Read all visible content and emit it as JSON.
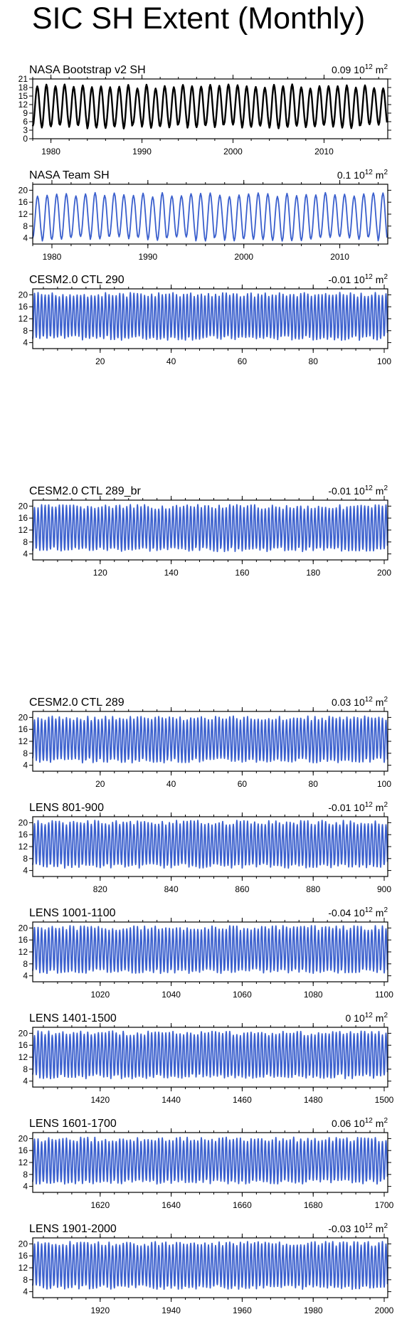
{
  "title": "SIC SH Extent (Monthly)",
  "chart_data": [
    {
      "type": "line",
      "panel_title": "NASA Bootstrap v2 SH",
      "trend": "0.09",
      "trend_unit_base": "10",
      "trend_unit_exp": "12",
      "trend_unit_tail": " m",
      "trend_unit_exp2": "2",
      "x_range": [
        1978,
        2017
      ],
      "x_ticks": [
        1980,
        1990,
        2000,
        2010
      ],
      "ylim": [
        0,
        21
      ],
      "y_ticks": [
        0,
        3,
        6,
        9,
        12,
        15,
        18,
        21
      ],
      "series": [
        {
          "color": "#000000",
          "period_years": 1,
          "min": 3.5,
          "max": 19.2
        }
      ]
    },
    {
      "type": "line",
      "panel_title": "NASA Team SH",
      "trend": "0.1",
      "trend_unit_base": "10",
      "trend_unit_exp": "12",
      "trend_unit_tail": " m",
      "trend_unit_exp2": "2",
      "x_range": [
        1978,
        2015
      ],
      "x_ticks": [
        1980,
        1990,
        2000,
        2010
      ],
      "ylim": [
        2,
        22
      ],
      "y_ticks": [
        4,
        8,
        12,
        16,
        20
      ],
      "series": [
        {
          "color": "#3a5fcd",
          "period_years": 1,
          "min": 3.0,
          "max": 19.2
        }
      ]
    },
    {
      "type": "line",
      "panel_title": "CESM2.0 CTL 290",
      "trend": "-0.01",
      "trend_unit_base": "10",
      "trend_unit_exp": "12",
      "trend_unit_tail": " m",
      "trend_unit_exp2": "2",
      "x_range": [
        1,
        101
      ],
      "x_ticks": [
        20,
        40,
        60,
        80,
        100
      ],
      "ylim": [
        2,
        22
      ],
      "y_ticks": [
        4,
        8,
        12,
        16,
        20
      ],
      "series": [
        {
          "color": "#3a5fcd",
          "period_years": 1,
          "min": 4.8,
          "max": 20.8
        }
      ]
    },
    {
      "type": "line",
      "panel_title": "CESM2.0 CTL 289_br",
      "trend": "-0.01",
      "trend_unit_base": "10",
      "trend_unit_exp": "12",
      "trend_unit_tail": " m",
      "trend_unit_exp2": "2",
      "x_range": [
        101,
        201
      ],
      "x_ticks": [
        120,
        140,
        160,
        180,
        200
      ],
      "ylim": [
        2,
        22
      ],
      "y_ticks": [
        4,
        8,
        12,
        16,
        20
      ],
      "series": [
        {
          "color": "#3a5fcd",
          "period_years": 1,
          "min": 4.8,
          "max": 20.5
        }
      ]
    },
    {
      "type": "line",
      "panel_title": "CESM2.0 CTL 289",
      "trend": "0.03",
      "trend_unit_base": "10",
      "trend_unit_exp": "12",
      "trend_unit_tail": " m",
      "trend_unit_exp2": "2",
      "x_range": [
        1,
        101
      ],
      "x_ticks": [
        20,
        40,
        60,
        80,
        100
      ],
      "ylim": [
        2,
        22
      ],
      "y_ticks": [
        4,
        8,
        12,
        16,
        20
      ],
      "series": [
        {
          "color": "#3a5fcd",
          "period_years": 1,
          "min": 4.8,
          "max": 20.5
        }
      ]
    },
    {
      "type": "line",
      "panel_title": "LENS 801-900",
      "trend": "-0.01",
      "trend_unit_base": "10",
      "trend_unit_exp": "12",
      "trend_unit_tail": " m",
      "trend_unit_exp2": "2",
      "x_range": [
        801,
        901
      ],
      "x_ticks": [
        820,
        840,
        860,
        880,
        900
      ],
      "ylim": [
        2,
        22
      ],
      "y_ticks": [
        4,
        8,
        12,
        16,
        20
      ],
      "series": [
        {
          "color": "#3a5fcd",
          "period_years": 1,
          "min": 4.8,
          "max": 20.8
        }
      ]
    },
    {
      "type": "line",
      "panel_title": "LENS 1001-1100",
      "trend": "-0.04",
      "trend_unit_base": "10",
      "trend_unit_exp": "12",
      "trend_unit_tail": " m",
      "trend_unit_exp2": "2",
      "x_range": [
        1001,
        1101
      ],
      "x_ticks": [
        1020,
        1040,
        1060,
        1080,
        1100
      ],
      "ylim": [
        2,
        22
      ],
      "y_ticks": [
        4,
        8,
        12,
        16,
        20
      ],
      "series": [
        {
          "color": "#3a5fcd",
          "period_years": 1,
          "min": 4.8,
          "max": 20.8
        }
      ]
    },
    {
      "type": "line",
      "panel_title": "LENS 1401-1500",
      "trend": "0",
      "trend_unit_base": "10",
      "trend_unit_exp": "12",
      "trend_unit_tail": " m",
      "trend_unit_exp2": "2",
      "x_range": [
        1401,
        1501
      ],
      "x_ticks": [
        1420,
        1440,
        1460,
        1480,
        1500
      ],
      "ylim": [
        2,
        22
      ],
      "y_ticks": [
        4,
        8,
        12,
        16,
        20
      ],
      "series": [
        {
          "color": "#3a5fcd",
          "period_years": 1,
          "min": 4.8,
          "max": 20.8
        }
      ]
    },
    {
      "type": "line",
      "panel_title": "LENS 1601-1700",
      "trend": "0.06",
      "trend_unit_base": "10",
      "trend_unit_exp": "12",
      "trend_unit_tail": " m",
      "trend_unit_exp2": "2",
      "x_range": [
        1601,
        1701
      ],
      "x_ticks": [
        1620,
        1640,
        1660,
        1680,
        1700
      ],
      "ylim": [
        2,
        22
      ],
      "y_ticks": [
        4,
        8,
        12,
        16,
        20
      ],
      "series": [
        {
          "color": "#3a5fcd",
          "period_years": 1,
          "min": 4.8,
          "max": 20.5
        }
      ]
    },
    {
      "type": "line",
      "panel_title": "LENS 1901-2000",
      "trend": "-0.03",
      "trend_unit_base": "10",
      "trend_unit_exp": "12",
      "trend_unit_tail": " m",
      "trend_unit_exp2": "2",
      "x_range": [
        1901,
        2001
      ],
      "x_ticks": [
        1920,
        1940,
        1960,
        1980,
        2000
      ],
      "ylim": [
        2,
        22
      ],
      "y_ticks": [
        4,
        8,
        12,
        16,
        20
      ],
      "series": [
        {
          "color": "#3a5fcd",
          "period_years": 1,
          "min": 4.8,
          "max": 20.8
        }
      ]
    }
  ]
}
